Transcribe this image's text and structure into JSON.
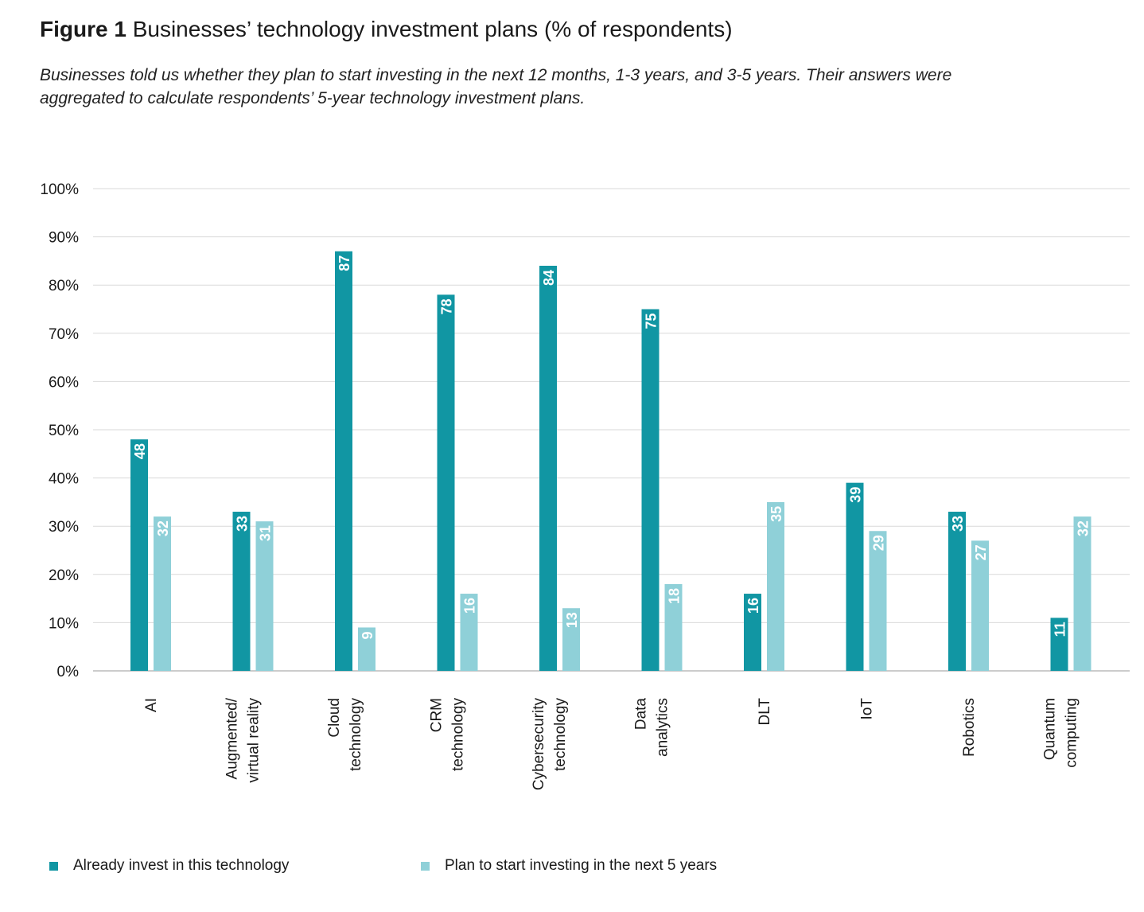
{
  "figure": {
    "label": "Figure 1",
    "title": "Businesses’ technology investment plans (% of respondents)",
    "subtitle": "Businesses told us whether they plan to start investing in the next 12 months, 1-3 years, and 3-5 years. Their answers were aggregated to calculate respondents’ 5-year technology investment plans."
  },
  "colors": {
    "already": "#1196a3",
    "plan": "#8fd0d8",
    "grid": "#d9d9d9",
    "axis": "#9a9a9a",
    "text": "#1a1a1a"
  },
  "chart_data": {
    "type": "bar",
    "title": "Businesses’ technology investment plans (% of respondents)",
    "xlabel": "",
    "ylabel": "",
    "ylim": [
      0,
      100
    ],
    "yticks": [
      "0%",
      "10%",
      "20%",
      "30%",
      "40%",
      "50%",
      "60%",
      "70%",
      "80%",
      "90%",
      "100%"
    ],
    "categories": [
      "AI",
      "Augmented/\nvirtual reality",
      "Cloud\ntechnology",
      "CRM\ntechnology",
      "Cybersecurity\ntechnology",
      "Data\nanalytics",
      "DLT",
      "IoT",
      "Robotics",
      "Quantum\ncomputing"
    ],
    "series": [
      {
        "name": "Already invest in this technology",
        "values": [
          48,
          33,
          87,
          78,
          84,
          75,
          16,
          39,
          33,
          11
        ]
      },
      {
        "name": "Plan to start investing in the next 5 years",
        "values": [
          32,
          31,
          9,
          16,
          13,
          18,
          35,
          29,
          27,
          32
        ]
      }
    ],
    "grid": true,
    "legend_position": "bottom-left"
  }
}
